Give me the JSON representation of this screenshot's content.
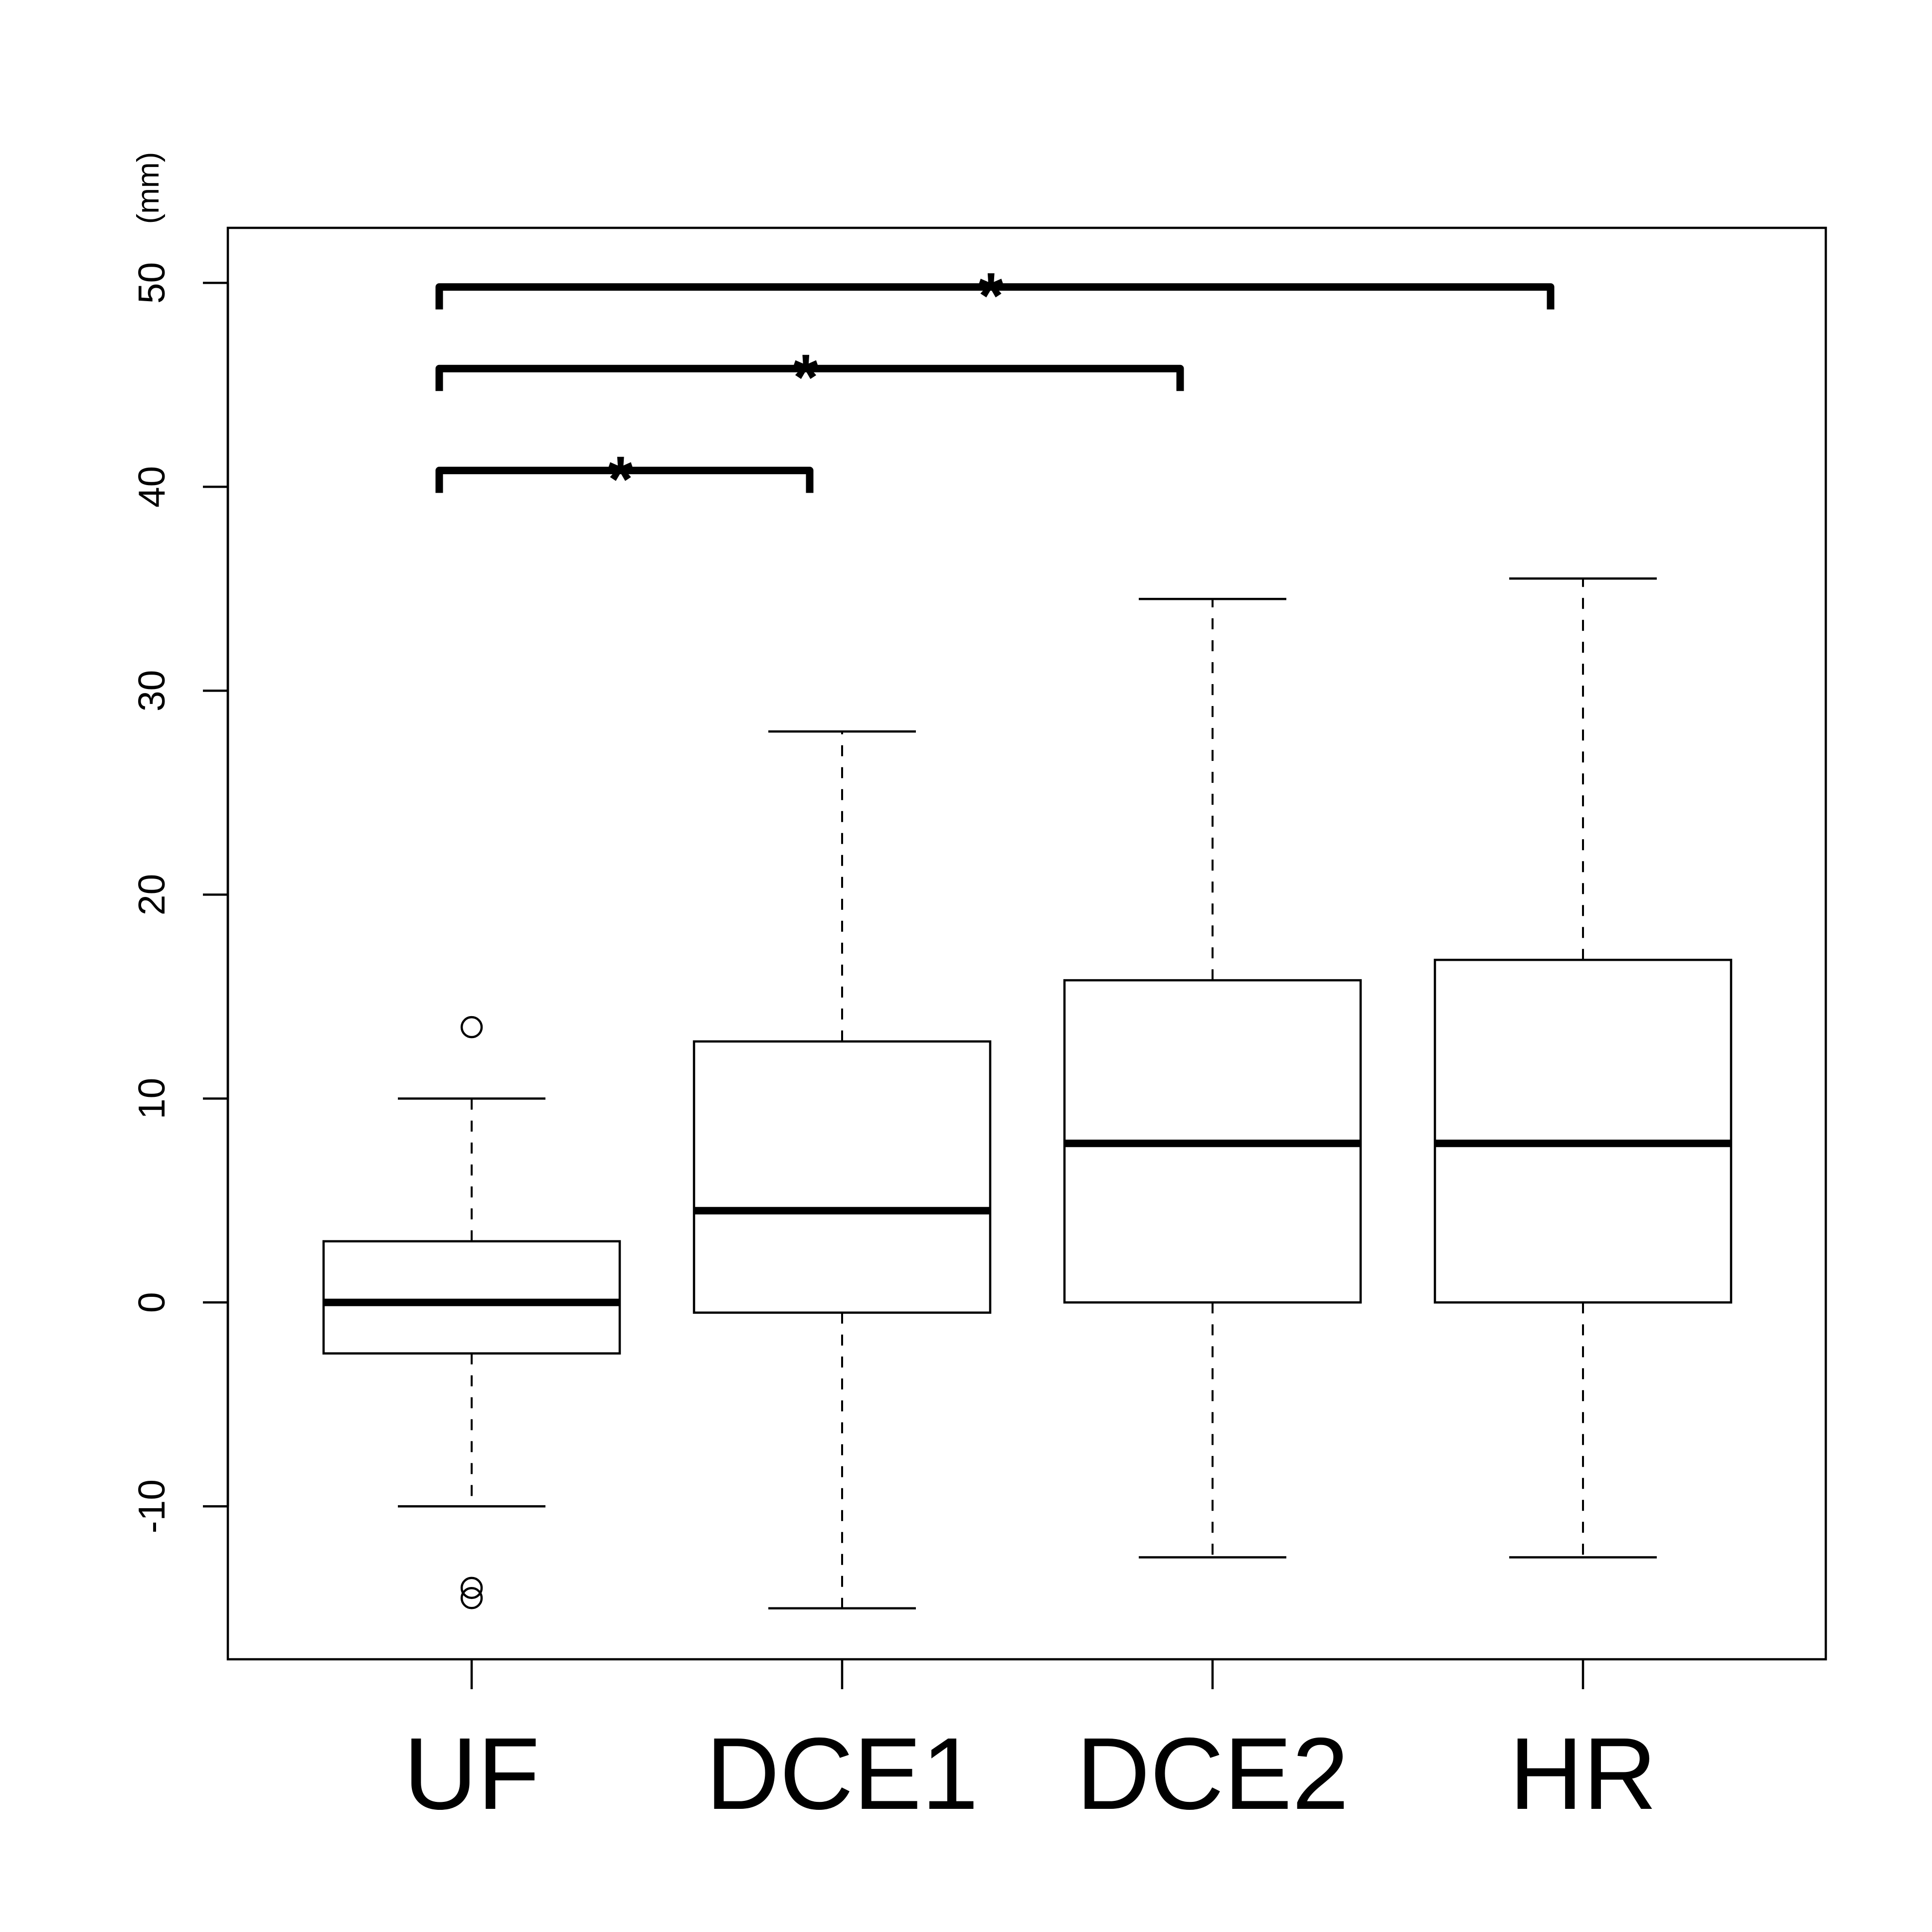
{
  "chart_data": {
    "type": "boxplot",
    "title": "",
    "xlabel": "",
    "ylabel": "(mm)",
    "ylim": [
      -17.5,
      52.7
    ],
    "yticks": [
      -10,
      0,
      10,
      20,
      30,
      40,
      50
    ],
    "ytick_labels": [
      "-10",
      "0",
      "10",
      "20",
      "30",
      "40",
      "50"
    ],
    "categories": [
      "UF",
      "DCE1",
      "DCE2",
      "HR"
    ],
    "boxes": [
      {
        "category": "UF",
        "whisker_low": -10,
        "q1": -2.5,
        "median": 0,
        "q3": 3,
        "whisker_high": 10,
        "outliers": [
          13.5,
          -14,
          -14.5
        ]
      },
      {
        "category": "DCE1",
        "whisker_low": -15,
        "q1": -0.5,
        "median": 4.5,
        "q3": 12.8,
        "whisker_high": 28,
        "outliers": []
      },
      {
        "category": "DCE2",
        "whisker_low": -12.5,
        "q1": 0,
        "median": 7.8,
        "q3": 15.8,
        "whisker_high": 34.5,
        "outliers": []
      },
      {
        "category": "HR",
        "whisker_low": -12.5,
        "q1": 0,
        "median": 7.8,
        "q3": 16.8,
        "whisker_high": 35.5,
        "outliers": []
      }
    ],
    "significance": [
      {
        "from": "UF",
        "to": "DCE1",
        "y": 40.8,
        "label": "*"
      },
      {
        "from": "UF",
        "to": "DCE2",
        "y": 45.8,
        "label": "*"
      },
      {
        "from": "UF",
        "to": "HR",
        "y": 49.8,
        "label": "*"
      }
    ],
    "colors": {
      "stroke": "#000000",
      "fill": "#ffffff"
    }
  }
}
